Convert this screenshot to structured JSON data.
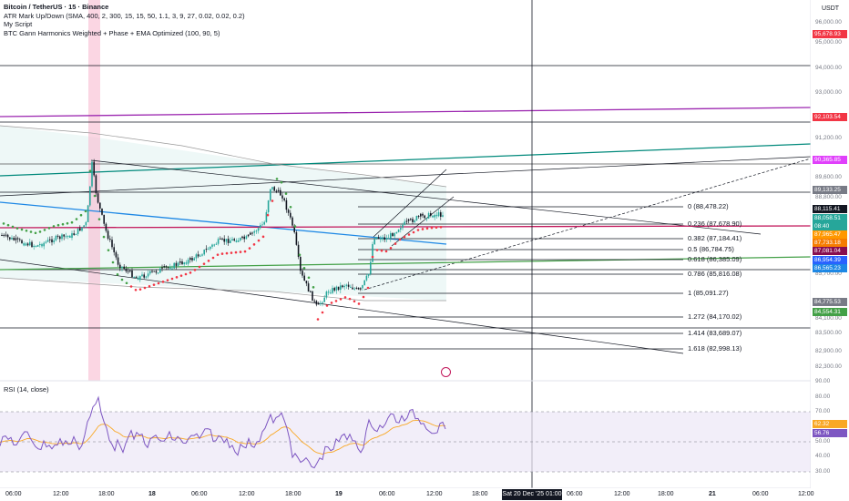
{
  "legend": {
    "symbol": "Bitcoin / TetherUS · 15 · Binance",
    "indicator1": "ATR Mark Up/Down (SMA, 400, 2, 300, 15, 15, 50, 1.1, 3, 9, 27, 0.02, 0.02, 0.2)",
    "indicator2": "My Script",
    "indicator3": "BTC Gann Harmonics Weighted + Phase + EMA Optimized (100, 90, 5)"
  },
  "rsi_legend": "RSI (14, close)",
  "axis_unit": "USDT",
  "price_ticks": [
    "96,000.00",
    "95,000.00",
    "94,000.00",
    "93,000.00",
    "91,200.00",
    "89,600.00",
    "88,800.00",
    "85,700.00",
    "84,100.00",
    "83,500.00",
    "82,900.00",
    "82,300.00"
  ],
  "rsi_ticks": [
    "90.00",
    "80.00",
    "70.00",
    "50.00",
    "40.00",
    "30.00"
  ],
  "price_tags": [
    {
      "text": "95,678.93",
      "color": "#f23645"
    },
    {
      "text": "92,103.54",
      "color": "#f23645"
    },
    {
      "text": "90,365.85",
      "color": "#e040fb"
    },
    {
      "text": "89,133.25",
      "color": "#787b86"
    },
    {
      "text": "88,115.41",
      "color": "#131722"
    },
    {
      "text": "88,058.51",
      "color": "#26a69a"
    },
    {
      "text": "08:40",
      "color": "#26a69a"
    },
    {
      "text": "87,965.47",
      "color": "#ff9800"
    },
    {
      "text": "87,733.18",
      "color": "#f57c00"
    },
    {
      "text": "87,081.04",
      "color": "#880e4f"
    },
    {
      "text": "86,954.39",
      "color": "#2962ff"
    },
    {
      "text": "86,565.23",
      "color": "#1e88e5"
    },
    {
      "text": "84,775.53",
      "color": "#787b86"
    },
    {
      "text": "84,554.31",
      "color": "#43a047"
    }
  ],
  "rsi_tags": [
    {
      "text": "62.32",
      "color": "#f9a825"
    },
    {
      "text": "56.76",
      "color": "#7e57c2"
    }
  ],
  "fib_levels": [
    "0 (88,478.22)",
    "0.236 (87,678.90)",
    "0.382 (87,184.41)",
    "0.5 (86,784.75)",
    "0.618 (86,385.09)",
    "0.786 (85,816.08)",
    "1 (85,091.27)",
    "1.272 (84,170.02)",
    "1.414 (83,689.07)",
    "1.618 (82,998.13)"
  ],
  "time_labels": [
    {
      "text": "06:00",
      "bold": false
    },
    {
      "text": "12:00",
      "bold": false
    },
    {
      "text": "18:00",
      "bold": false
    },
    {
      "text": "18",
      "bold": true
    },
    {
      "text": "06:00",
      "bold": false
    },
    {
      "text": "12:00",
      "bold": false
    },
    {
      "text": "18:00",
      "bold": false
    },
    {
      "text": "19",
      "bold": true
    },
    {
      "text": "06:00",
      "bold": false
    },
    {
      "text": "12:00",
      "bold": false
    },
    {
      "text": "18:00",
      "bold": false
    },
    {
      "text": "06:00",
      "bold": false
    },
    {
      "text": "12:00",
      "bold": false
    },
    {
      "text": "18:00",
      "bold": false
    },
    {
      "text": "21",
      "bold": true
    },
    {
      "text": "06:00",
      "bold": false
    },
    {
      "text": "12:00",
      "bold": false
    }
  ],
  "crosshair_time": "Sat 20 Dec '25   01:00",
  "colors": {
    "up": "#26a69a",
    "down": "#131722",
    "rsi": "#7e57c2",
    "rsi_ma": "#f9a825",
    "gann": "#9c27b0",
    "teal": "#00897b",
    "ema_red": "#f23645",
    "ema_green": "#43a047",
    "blue": "#1e88e5"
  }
}
